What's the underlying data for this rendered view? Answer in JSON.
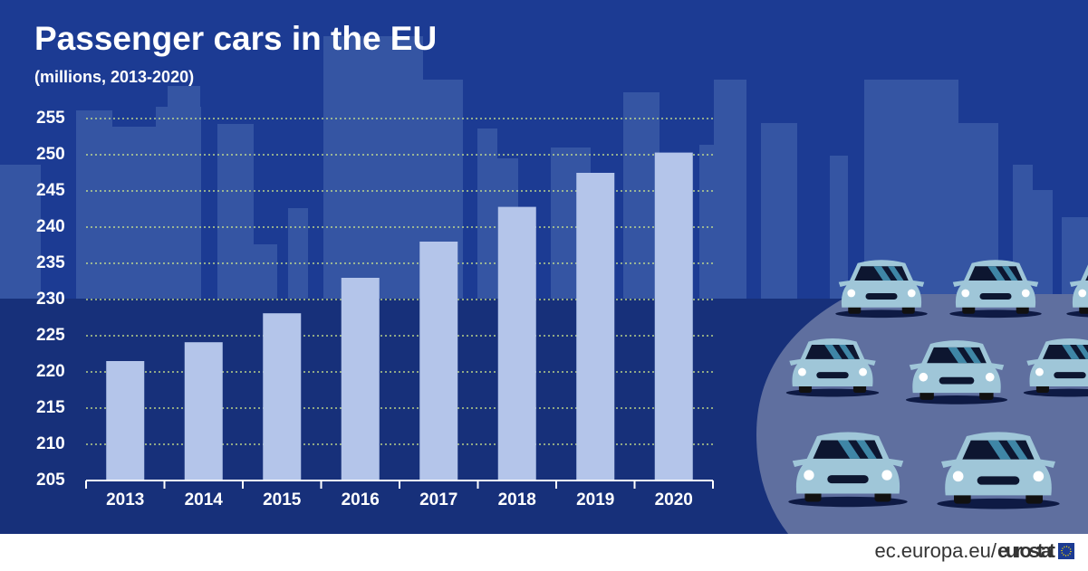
{
  "chart_data": {
    "type": "bar",
    "title": "Passenger cars in the EU",
    "subtitle": "(millions, 2013-2020)",
    "categories": [
      "2013",
      "2014",
      "2015",
      "2016",
      "2017",
      "2018",
      "2019",
      "2020"
    ],
    "values": [
      221.5,
      224.1,
      228.1,
      233.0,
      238.0,
      242.8,
      247.5,
      250.3
    ],
    "color": "#b4c5ea",
    "ylim": [
      205,
      255
    ],
    "yticks": [
      205,
      210,
      215,
      220,
      225,
      230,
      235,
      240,
      245,
      250,
      255
    ],
    "grid": true
  },
  "footer": {
    "site": "ec.europa.eu/",
    "brand": "eurostat"
  }
}
